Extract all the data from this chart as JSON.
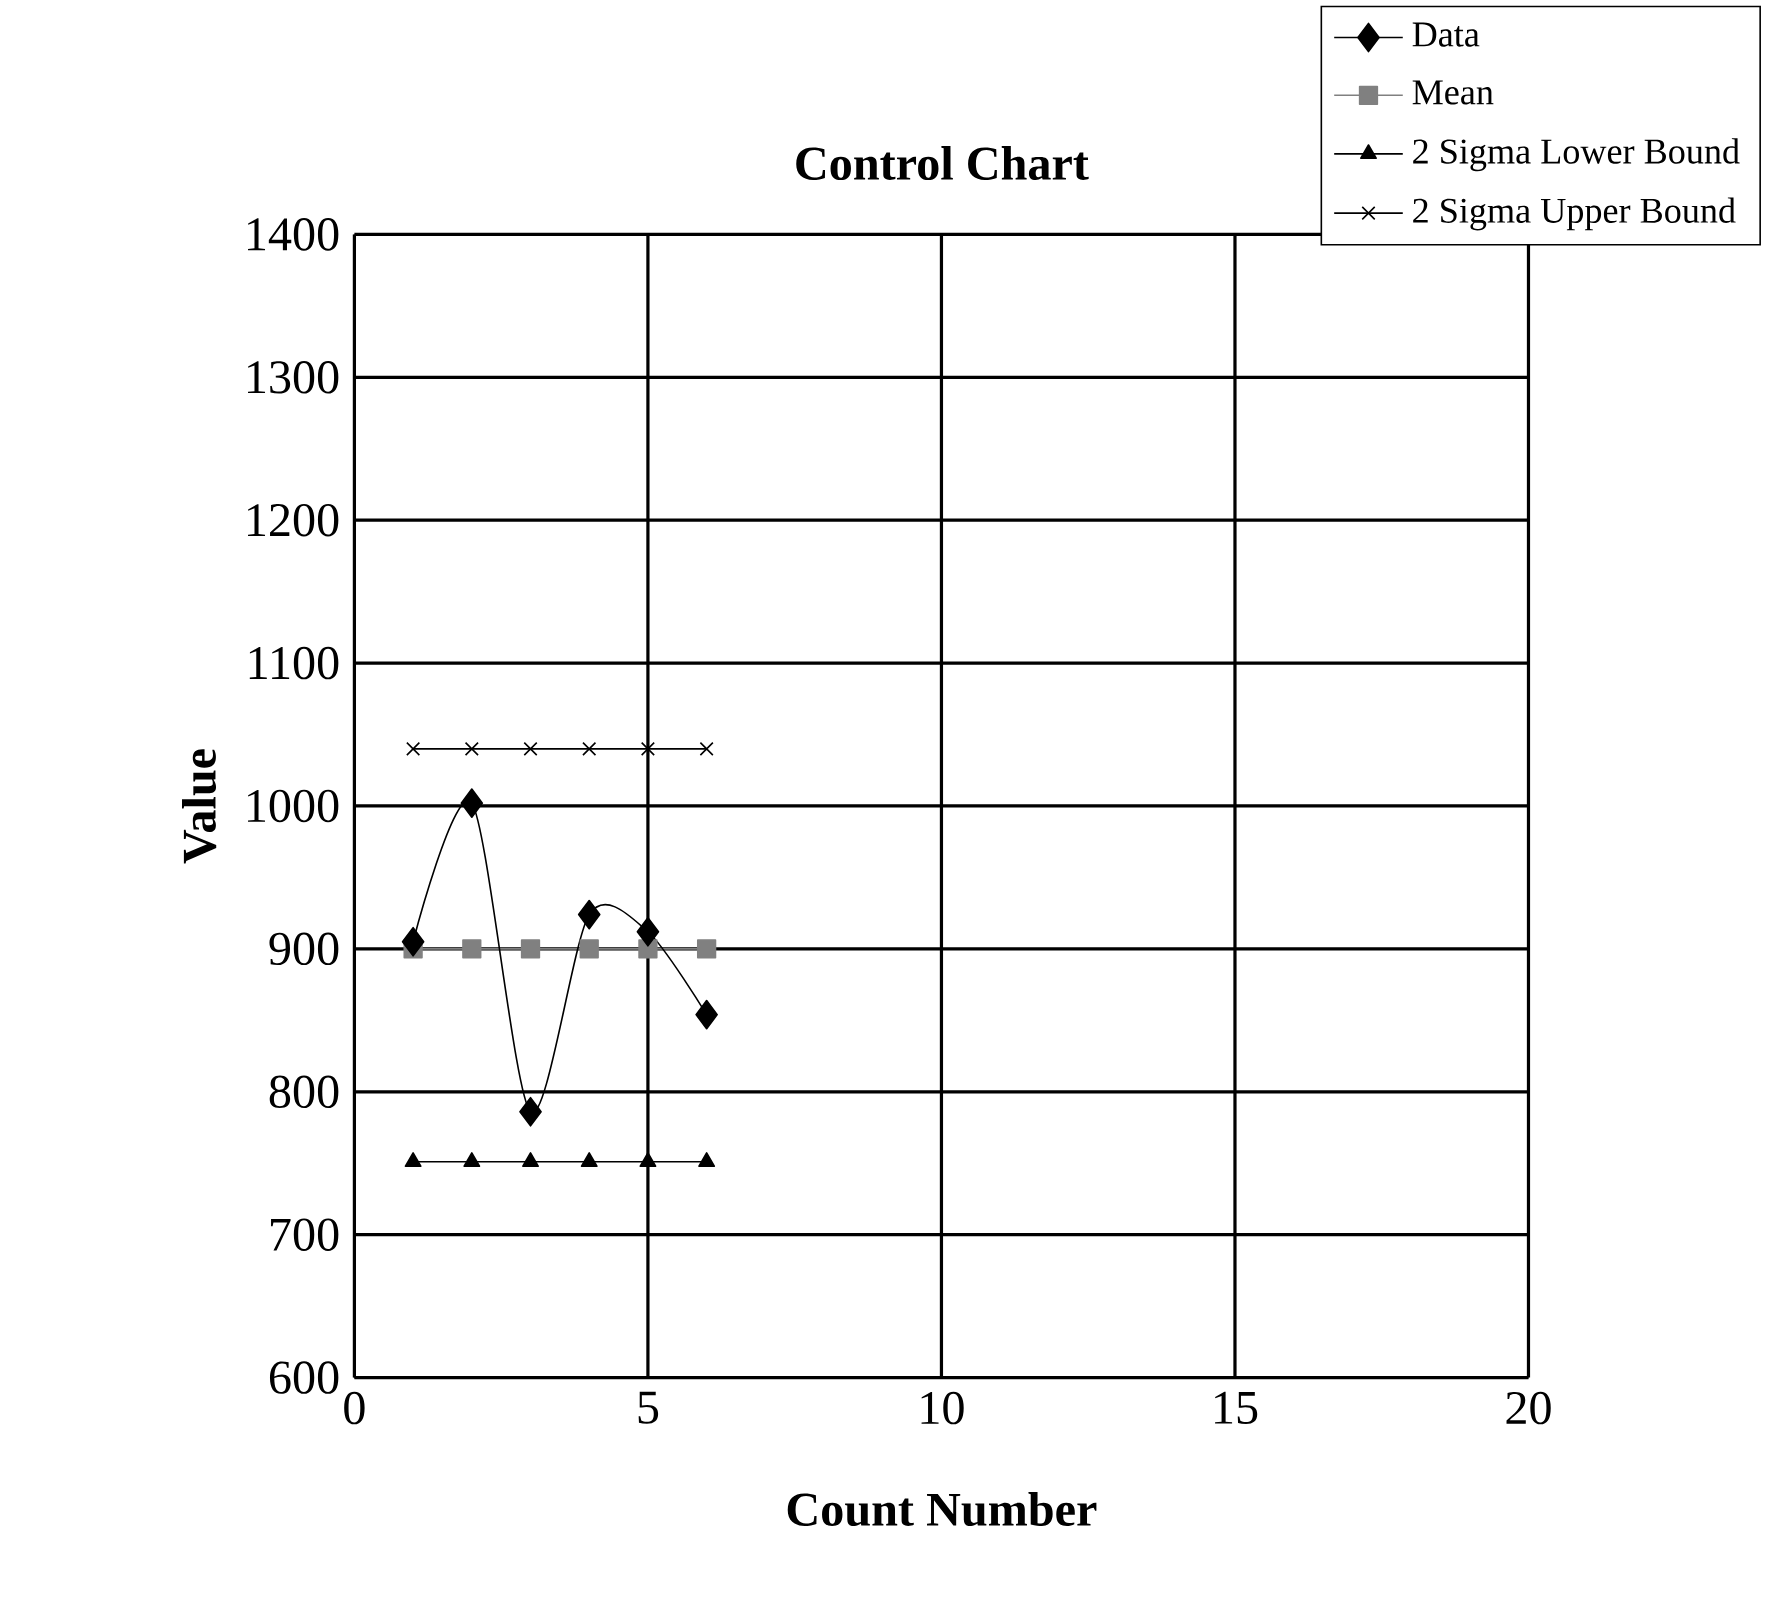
{
  "chart_data": {
    "type": "line",
    "title": "Control Chart",
    "xlabel": "Count Number",
    "ylabel": "Value",
    "xlim": [
      0,
      20
    ],
    "xticks": [
      0,
      5,
      10,
      15,
      20
    ],
    "ylim": [
      600,
      1400
    ],
    "yticks": [
      600,
      700,
      800,
      900,
      1000,
      1100,
      1200,
      1300,
      1400
    ],
    "x": [
      1,
      2,
      3,
      4,
      5,
      6
    ],
    "grid": true,
    "legend": "top right",
    "series": [
      {
        "name": "Data",
        "color": "#000000",
        "marker": "diamond",
        "values": [
          905,
          1002,
          786,
          924,
          912,
          854
        ]
      },
      {
        "name": "Mean",
        "color": "#808080",
        "marker": "square",
        "values": [
          900,
          900,
          900,
          900,
          900,
          900
        ]
      },
      {
        "name": "2 Sigma Lower Bound",
        "color": "#000000",
        "marker": "triangle",
        "values": [
          751,
          751,
          751,
          751,
          751,
          751
        ]
      },
      {
        "name": "2 Sigma Upper Bound",
        "color": "#000000",
        "marker": "cross",
        "values": [
          1040,
          1040,
          1040,
          1040,
          1040,
          1040
        ]
      }
    ]
  }
}
